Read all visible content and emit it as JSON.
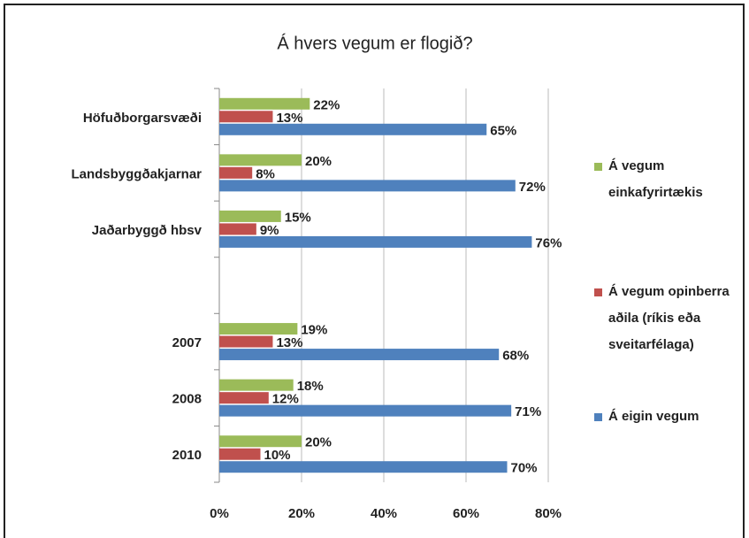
{
  "chart_data": {
    "type": "bar",
    "orientation": "horizontal",
    "title": "Á hvers vegum er flogið?",
    "categories": [
      "Höfuðborgarsvæði",
      "Landsbyggðakjarnar",
      "Jaðarbyggð hbsv",
      null,
      "2007",
      "2008",
      "2010"
    ],
    "series": [
      {
        "name": "Á vegum einkafyrirtækis",
        "color": "#9bbb59",
        "values": [
          22,
          20,
          15,
          null,
          19,
          18,
          20
        ],
        "value_labels": [
          "22%",
          "20%",
          "15%",
          null,
          "19%",
          "18%",
          "20%"
        ]
      },
      {
        "name": "Á vegum opinberra aðila (ríkis eða sveitarfélaga)",
        "color": "#c0504d",
        "values": [
          13,
          8,
          9,
          null,
          13,
          12,
          10
        ],
        "value_labels": [
          "13%",
          "8%",
          "9%",
          null,
          "13%",
          "12%",
          "10%"
        ]
      },
      {
        "name": "Á eigin vegum",
        "color": "#4f81bd",
        "values": [
          65,
          72,
          76,
          null,
          68,
          71,
          70
        ],
        "value_labels": [
          "65%",
          "72%",
          "76%",
          null,
          "68%",
          "71%",
          "70%"
        ]
      }
    ],
    "xlim": [
      0,
      80
    ],
    "xticks": [
      {
        "value": 0,
        "label": "0%"
      },
      {
        "value": 20,
        "label": "20%"
      },
      {
        "value": 40,
        "label": "40%"
      },
      {
        "value": 60,
        "label": "60%"
      },
      {
        "value": 80,
        "label": "80%"
      }
    ],
    "grid": true,
    "legend": "right"
  }
}
